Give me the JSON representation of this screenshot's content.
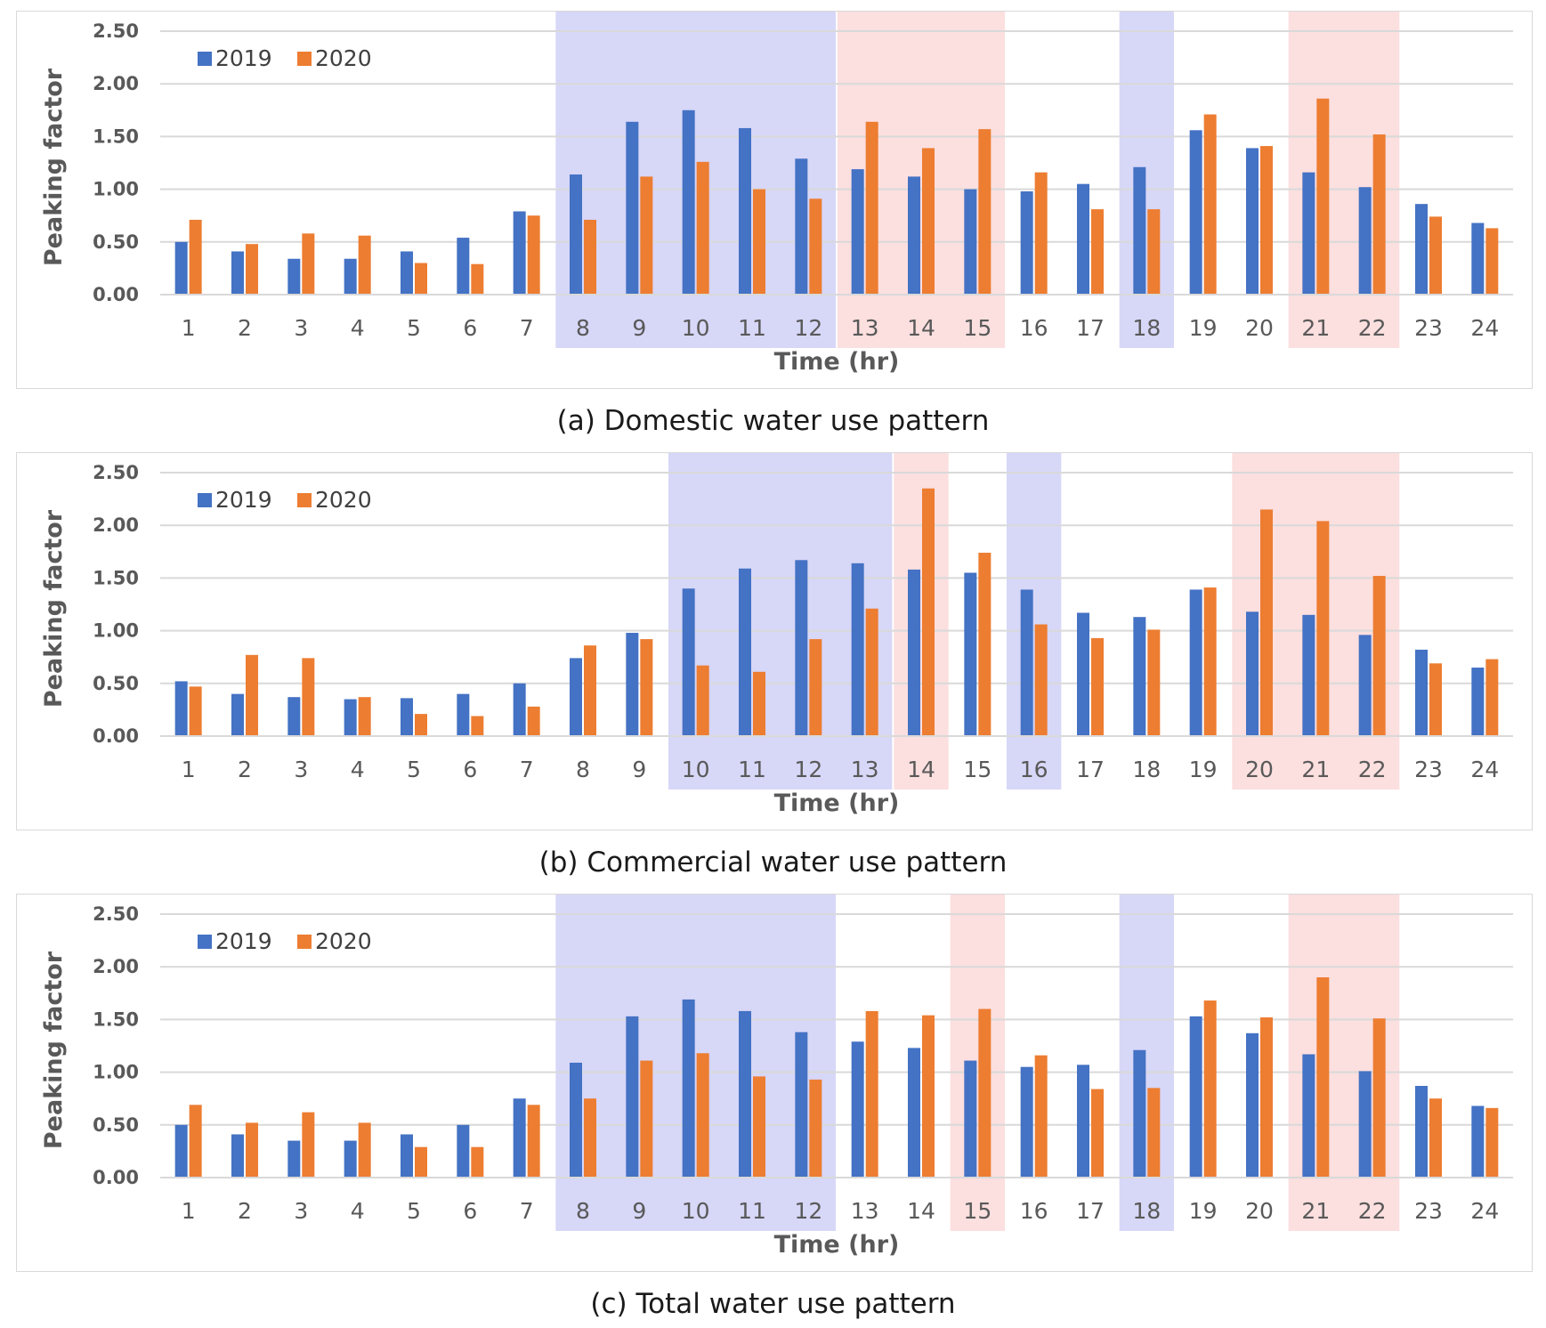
{
  "colors": {
    "series_2019": "#4472c4",
    "series_2020": "#ed7d31",
    "highlight_blue": "#c9c9f5",
    "highlight_red": "#fbd4d4",
    "grid": "#d9d9d9"
  },
  "chart_data": [
    {
      "type": "bar",
      "caption": "(a) Domestic water use pattern",
      "xlabel": "Time (hr)",
      "ylabel": "Peaking factor",
      "ylim": [
        0,
        2.5
      ],
      "yticks": [
        "0.00",
        "0.50",
        "1.00",
        "1.50",
        "2.00",
        "2.50"
      ],
      "grid": true,
      "legend_position": "top-left",
      "categories": [
        "1",
        "2",
        "3",
        "4",
        "5",
        "6",
        "7",
        "8",
        "9",
        "10",
        "11",
        "12",
        "13",
        "14",
        "15",
        "16",
        "17",
        "18",
        "19",
        "20",
        "21",
        "22",
        "23",
        "24"
      ],
      "series": [
        {
          "name": "2019",
          "values": [
            0.5,
            0.41,
            0.34,
            0.34,
            0.41,
            0.54,
            0.79,
            1.14,
            1.64,
            1.75,
            1.58,
            1.29,
            1.19,
            1.12,
            1.0,
            0.98,
            1.05,
            1.21,
            1.56,
            1.39,
            1.16,
            1.02,
            0.86,
            0.68
          ]
        },
        {
          "name": "2020",
          "values": [
            0.71,
            0.48,
            0.58,
            0.56,
            0.3,
            0.29,
            0.75,
            0.71,
            1.12,
            1.26,
            1.0,
            0.91,
            1.64,
            1.39,
            1.57,
            1.16,
            0.81,
            0.81,
            1.71,
            1.41,
            1.86,
            1.52,
            0.74,
            0.63
          ]
        }
      ],
      "highlights": [
        {
          "hours": [
            "8",
            "12"
          ],
          "color": "blue"
        },
        {
          "hours": [
            "13",
            "15"
          ],
          "color": "red"
        },
        {
          "hours": [
            "18",
            "18"
          ],
          "color": "blue"
        },
        {
          "hours": [
            "21",
            "22"
          ],
          "color": "red"
        }
      ]
    },
    {
      "type": "bar",
      "caption": "(b) Commercial water use pattern",
      "xlabel": "Time (hr)",
      "ylabel": "Peaking factor",
      "ylim": [
        0,
        2.5
      ],
      "yticks": [
        "0.00",
        "0.50",
        "1.00",
        "1.50",
        "2.00",
        "2.50"
      ],
      "grid": true,
      "legend_position": "top-left",
      "categories": [
        "1",
        "2",
        "3",
        "4",
        "5",
        "6",
        "7",
        "8",
        "9",
        "10",
        "11",
        "12",
        "13",
        "14",
        "15",
        "16",
        "17",
        "18",
        "19",
        "20",
        "21",
        "22",
        "23",
        "24"
      ],
      "series": [
        {
          "name": "2019",
          "values": [
            0.52,
            0.4,
            0.37,
            0.35,
            0.36,
            0.4,
            0.5,
            0.74,
            0.98,
            1.4,
            1.59,
            1.67,
            1.64,
            1.58,
            1.55,
            1.39,
            1.17,
            1.13,
            1.39,
            1.18,
            1.15,
            0.96,
            0.82,
            0.65
          ]
        },
        {
          "name": "2020",
          "values": [
            0.47,
            0.77,
            0.74,
            0.37,
            0.21,
            0.19,
            0.28,
            0.86,
            0.92,
            0.67,
            0.61,
            0.92,
            1.21,
            2.35,
            1.74,
            1.06,
            0.93,
            1.01,
            1.41,
            2.15,
            2.04,
            1.52,
            0.69,
            0.73
          ]
        }
      ],
      "highlights": [
        {
          "hours": [
            "10",
            "13"
          ],
          "color": "blue"
        },
        {
          "hours": [
            "14",
            "14"
          ],
          "color": "red"
        },
        {
          "hours": [
            "16",
            "16"
          ],
          "color": "blue"
        },
        {
          "hours": [
            "20",
            "22"
          ],
          "color": "red"
        }
      ]
    },
    {
      "type": "bar",
      "caption": "(c) Total water use pattern",
      "xlabel": "Time (hr)",
      "ylabel": "Peaking factor",
      "ylim": [
        0,
        2.5
      ],
      "yticks": [
        "0.00",
        "0.50",
        "1.00",
        "1.50",
        "2.00",
        "2.50"
      ],
      "grid": true,
      "legend_position": "top-left",
      "categories": [
        "1",
        "2",
        "3",
        "4",
        "5",
        "6",
        "7",
        "8",
        "9",
        "10",
        "11",
        "12",
        "13",
        "14",
        "15",
        "16",
        "17",
        "18",
        "19",
        "20",
        "21",
        "22",
        "23",
        "24"
      ],
      "series": [
        {
          "name": "2019",
          "values": [
            0.5,
            0.41,
            0.35,
            0.35,
            0.41,
            0.5,
            0.75,
            1.09,
            1.53,
            1.69,
            1.58,
            1.38,
            1.29,
            1.23,
            1.11,
            1.05,
            1.07,
            1.21,
            1.53,
            1.37,
            1.17,
            1.01,
            0.87,
            0.68
          ]
        },
        {
          "name": "2020",
          "values": [
            0.69,
            0.52,
            0.62,
            0.52,
            0.29,
            0.29,
            0.69,
            0.75,
            1.11,
            1.18,
            0.96,
            0.93,
            1.58,
            1.54,
            1.6,
            1.16,
            0.84,
            0.85,
            1.68,
            1.52,
            1.9,
            1.51,
            0.75,
            0.66
          ]
        }
      ],
      "highlights": [
        {
          "hours": [
            "8",
            "12"
          ],
          "color": "blue"
        },
        {
          "hours": [
            "15",
            "15"
          ],
          "color": "red"
        },
        {
          "hours": [
            "18",
            "18"
          ],
          "color": "blue"
        },
        {
          "hours": [
            "21",
            "22"
          ],
          "color": "red"
        }
      ]
    }
  ]
}
